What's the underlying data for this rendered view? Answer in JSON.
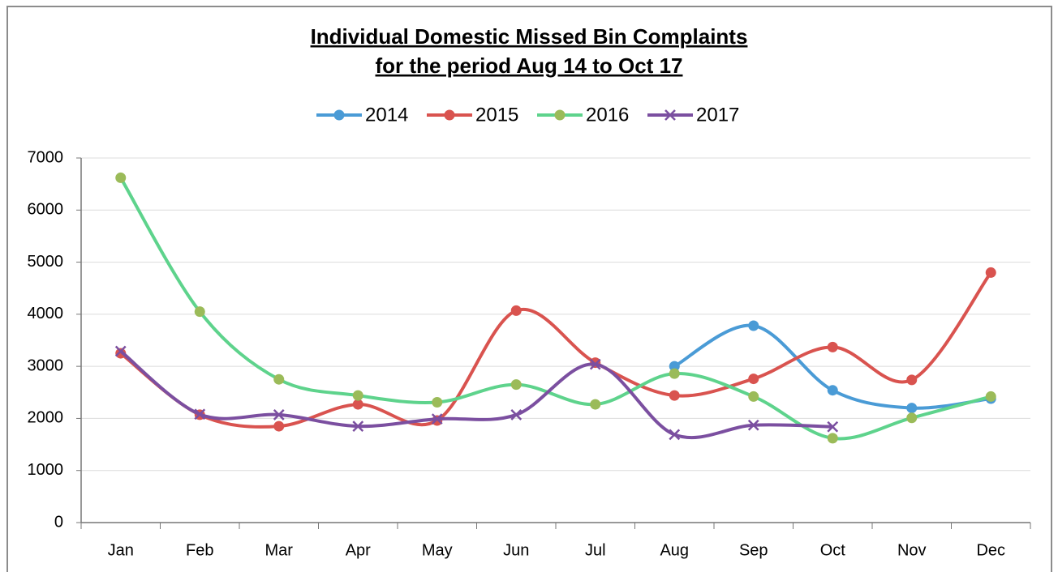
{
  "chart_data": {
    "type": "line",
    "smooth": true,
    "title": [
      "Individual Domestic Missed Bin Complaints",
      "for the period Aug 14 to Oct 17"
    ],
    "categories": [
      "Jan",
      "Feb",
      "Mar",
      "Apr",
      "May",
      "Jun",
      "Jul",
      "Aug",
      "Sep",
      "Oct",
      "Nov",
      "Dec"
    ],
    "series": [
      {
        "name": "2014",
        "color": "#4a9bd6",
        "marker": "circle",
        "values": [
          null,
          null,
          null,
          null,
          null,
          null,
          null,
          3000,
          3780,
          2540,
          2200,
          2380
        ]
      },
      {
        "name": "2015",
        "color": "#d9534f",
        "marker": "circle",
        "values": [
          3250,
          2070,
          1850,
          2270,
          1960,
          4070,
          3070,
          2440,
          2760,
          3370,
          2740,
          4800
        ]
      },
      {
        "name": "2016",
        "color": "#5ed38c",
        "marker": "circle",
        "marker_color": "#9bbb59",
        "values": [
          6620,
          4050,
          2750,
          2440,
          2310,
          2650,
          2270,
          2860,
          2420,
          1620,
          2010,
          2420
        ]
      },
      {
        "name": "2017",
        "color": "#7b4fa0",
        "marker": "x",
        "values": [
          3290,
          2080,
          2070,
          1850,
          1990,
          2070,
          3040,
          1690,
          1870,
          1840,
          null,
          null
        ]
      }
    ],
    "ylim": [
      0,
      7000
    ],
    "yticks": [
      0,
      1000,
      2000,
      3000,
      4000,
      5000,
      6000,
      7000
    ],
    "grid": true,
    "legend": "top"
  }
}
